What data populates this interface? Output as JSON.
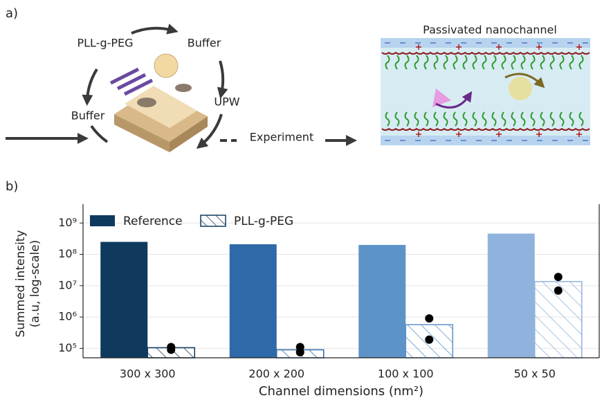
{
  "panel_a": {
    "label": "a)",
    "pll_label": "PLL-g-PEG",
    "buffer_top": "Buffer",
    "buffer_left": "Buffer",
    "upw": "UPW",
    "experiment": "Experiment",
    "channel_title": "Passivated nanochannel"
  },
  "chart_data": {
    "type": "bar",
    "panel_label": "b)",
    "log_scale": true,
    "grid": true,
    "y_label": [
      "Summed intensity",
      "(a.u, log-scale)"
    ],
    "x_label": "Channel dimensions (nm²)",
    "categories": [
      "300 x 300",
      "200 x 200",
      "100 x 100",
      "50 x 50"
    ],
    "category_colors": [
      "#0f3a5e",
      "#2e6aa8",
      "#5d93c8",
      "#8fb3dc"
    ],
    "series": [
      {
        "name": "Reference",
        "color": "#0f3a5e",
        "values": [
          250000000,
          210000000,
          200000000,
          460000000
        ]
      },
      {
        "name": "PLL-g-PEG",
        "color": "#0f3a5e",
        "hatch": true,
        "values": [
          105000,
          90000,
          570000,
          13500000
        ],
        "replicates": [
          [
            110000,
            90000
          ],
          [
            110000,
            75000
          ],
          [
            900000,
            190000
          ],
          [
            19000000,
            7000000
          ]
        ]
      }
    ],
    "ylim": [
      50000,
      4000000000
    ],
    "yticks": [
      {
        "value": 100000,
        "label": "10⁵"
      },
      {
        "value": 1000000,
        "label": "10⁶"
      },
      {
        "value": 10000000,
        "label": "10⁷"
      },
      {
        "value": 100000000,
        "label": "10⁸"
      },
      {
        "value": 1000000000,
        "label": "10⁹"
      }
    ],
    "legend": "upper left"
  }
}
